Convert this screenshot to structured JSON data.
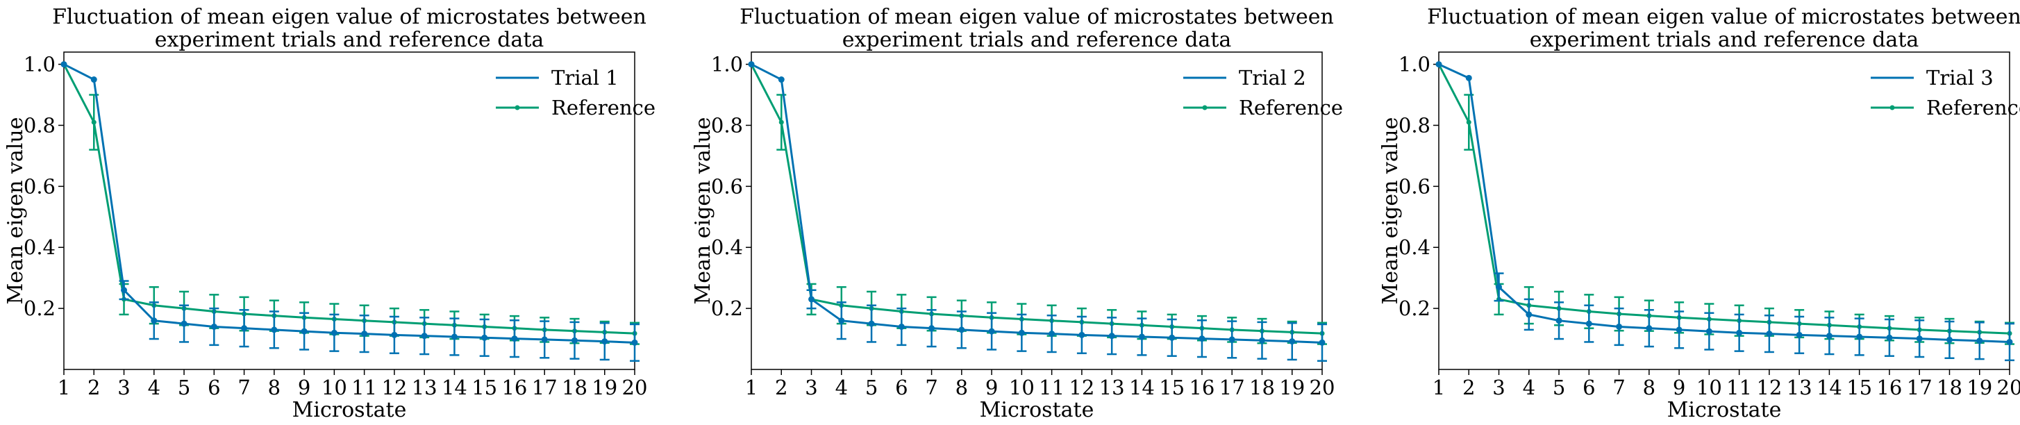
{
  "chart_data": [
    {
      "type": "line",
      "title": "Fluctuation of mean eigen value of microstates between experiment trials and reference data",
      "title_lines": [
        "Fluctuation of mean eigen value of microstates between",
        "experiment trials and reference data"
      ],
      "xlabel": "Microstate",
      "ylabel": "Mean eigen value",
      "x": [
        1,
        2,
        3,
        4,
        5,
        6,
        7,
        8,
        9,
        10,
        11,
        12,
        13,
        14,
        15,
        16,
        17,
        18,
        19,
        20
      ],
      "xlim": [
        1,
        20
      ],
      "ylim": [
        0.0,
        1.04
      ],
      "yticks": [
        0.2,
        0.4,
        0.6,
        0.8,
        1.0
      ],
      "ytick_labels": [
        "0.2",
        "0.4",
        "0.6",
        "0.8",
        "1.0"
      ],
      "legend_position": "top-right",
      "series": [
        {
          "name": "Trial 1",
          "color": "#0072b2",
          "values": [
            1.0,
            0.95,
            0.26,
            0.16,
            0.15,
            0.14,
            0.135,
            0.13,
            0.125,
            0.12,
            0.117,
            0.113,
            0.11,
            0.107,
            0.104,
            0.101,
            0.098,
            0.095,
            0.092,
            0.088
          ],
          "errors": [
            0,
            0,
            0.03,
            0.06,
            0.06,
            0.06,
            0.06,
            0.06,
            0.06,
            0.06,
            0.06,
            0.06,
            0.06,
            0.06,
            0.06,
            0.06,
            0.06,
            0.06,
            0.06,
            0.06
          ]
        },
        {
          "name": "Reference",
          "color": "#009e73",
          "values": [
            1.0,
            0.81,
            0.23,
            0.21,
            0.2,
            0.19,
            0.182,
            0.176,
            0.17,
            0.165,
            0.16,
            0.155,
            0.15,
            0.145,
            0.14,
            0.135,
            0.13,
            0.126,
            0.122,
            0.118
          ],
          "errors": [
            0,
            0.09,
            0.05,
            0.06,
            0.055,
            0.055,
            0.055,
            0.05,
            0.05,
            0.05,
            0.05,
            0.045,
            0.045,
            0.045,
            0.04,
            0.04,
            0.04,
            0.04,
            0.035,
            0.035
          ]
        }
      ]
    },
    {
      "type": "line",
      "title": "Fluctuation of mean eigen value of microstates between experiment trials and reference data",
      "title_lines": [
        "Fluctuation of mean eigen value of microstates between",
        "experiment trials and reference data"
      ],
      "xlabel": "Microstate",
      "ylabel": "Mean eigen value",
      "x": [
        1,
        2,
        3,
        4,
        5,
        6,
        7,
        8,
        9,
        10,
        11,
        12,
        13,
        14,
        15,
        16,
        17,
        18,
        19,
        20
      ],
      "xlim": [
        1,
        20
      ],
      "ylim": [
        0.0,
        1.04
      ],
      "yticks": [
        0.2,
        0.4,
        0.6,
        0.8,
        1.0
      ],
      "ytick_labels": [
        "0.2",
        "0.4",
        "0.6",
        "0.8",
        "1.0"
      ],
      "legend_position": "top-right",
      "series": [
        {
          "name": "Trial 2",
          "color": "#0072b2",
          "values": [
            1.0,
            0.95,
            0.23,
            0.16,
            0.15,
            0.14,
            0.135,
            0.13,
            0.125,
            0.12,
            0.117,
            0.113,
            0.11,
            0.107,
            0.104,
            0.101,
            0.098,
            0.095,
            0.092,
            0.088
          ],
          "errors": [
            0,
            0,
            0.03,
            0.06,
            0.06,
            0.06,
            0.06,
            0.06,
            0.06,
            0.06,
            0.06,
            0.06,
            0.06,
            0.06,
            0.06,
            0.06,
            0.06,
            0.06,
            0.06,
            0.06
          ]
        },
        {
          "name": "Reference",
          "color": "#009e73",
          "values": [
            1.0,
            0.81,
            0.23,
            0.21,
            0.2,
            0.19,
            0.182,
            0.176,
            0.17,
            0.165,
            0.16,
            0.155,
            0.15,
            0.145,
            0.14,
            0.135,
            0.13,
            0.126,
            0.122,
            0.118
          ],
          "errors": [
            0,
            0.09,
            0.05,
            0.06,
            0.055,
            0.055,
            0.055,
            0.05,
            0.05,
            0.05,
            0.05,
            0.045,
            0.045,
            0.045,
            0.04,
            0.04,
            0.04,
            0.04,
            0.035,
            0.035
          ]
        }
      ]
    },
    {
      "type": "line",
      "title": "Fluctuation of mean eigen value of microstates between experiment trials and reference data",
      "title_lines": [
        "Fluctuation of mean eigen value of microstates between",
        "experiment trials and reference data"
      ],
      "xlabel": "Microstate",
      "ylabel": "Mean eigen value",
      "x": [
        1,
        2,
        3,
        4,
        5,
        6,
        7,
        8,
        9,
        10,
        11,
        12,
        13,
        14,
        15,
        16,
        17,
        18,
        19,
        20
      ],
      "xlim": [
        1,
        20
      ],
      "ylim": [
        0.0,
        1.04
      ],
      "yticks": [
        0.2,
        0.4,
        0.6,
        0.8,
        1.0
      ],
      "ytick_labels": [
        "0.2",
        "0.4",
        "0.6",
        "0.8",
        "1.0"
      ],
      "legend_position": "top-right",
      "series": [
        {
          "name": "Trial 3",
          "color": "#0072b2",
          "values": [
            1.0,
            0.955,
            0.27,
            0.18,
            0.16,
            0.15,
            0.14,
            0.135,
            0.13,
            0.125,
            0.12,
            0.117,
            0.113,
            0.11,
            0.107,
            0.104,
            0.101,
            0.097,
            0.094,
            0.09
          ],
          "errors": [
            0,
            0,
            0.045,
            0.05,
            0.06,
            0.06,
            0.06,
            0.06,
            0.06,
            0.06,
            0.06,
            0.06,
            0.06,
            0.06,
            0.06,
            0.06,
            0.06,
            0.06,
            0.06,
            0.06
          ]
        },
        {
          "name": "Reference",
          "color": "#009e73",
          "values": [
            1.0,
            0.81,
            0.23,
            0.21,
            0.2,
            0.19,
            0.182,
            0.176,
            0.17,
            0.165,
            0.16,
            0.155,
            0.15,
            0.145,
            0.14,
            0.135,
            0.13,
            0.126,
            0.122,
            0.118
          ],
          "errors": [
            0,
            0.09,
            0.05,
            0.06,
            0.055,
            0.055,
            0.055,
            0.05,
            0.05,
            0.05,
            0.05,
            0.045,
            0.045,
            0.045,
            0.04,
            0.04,
            0.04,
            0.04,
            0.035,
            0.035
          ]
        }
      ]
    }
  ]
}
